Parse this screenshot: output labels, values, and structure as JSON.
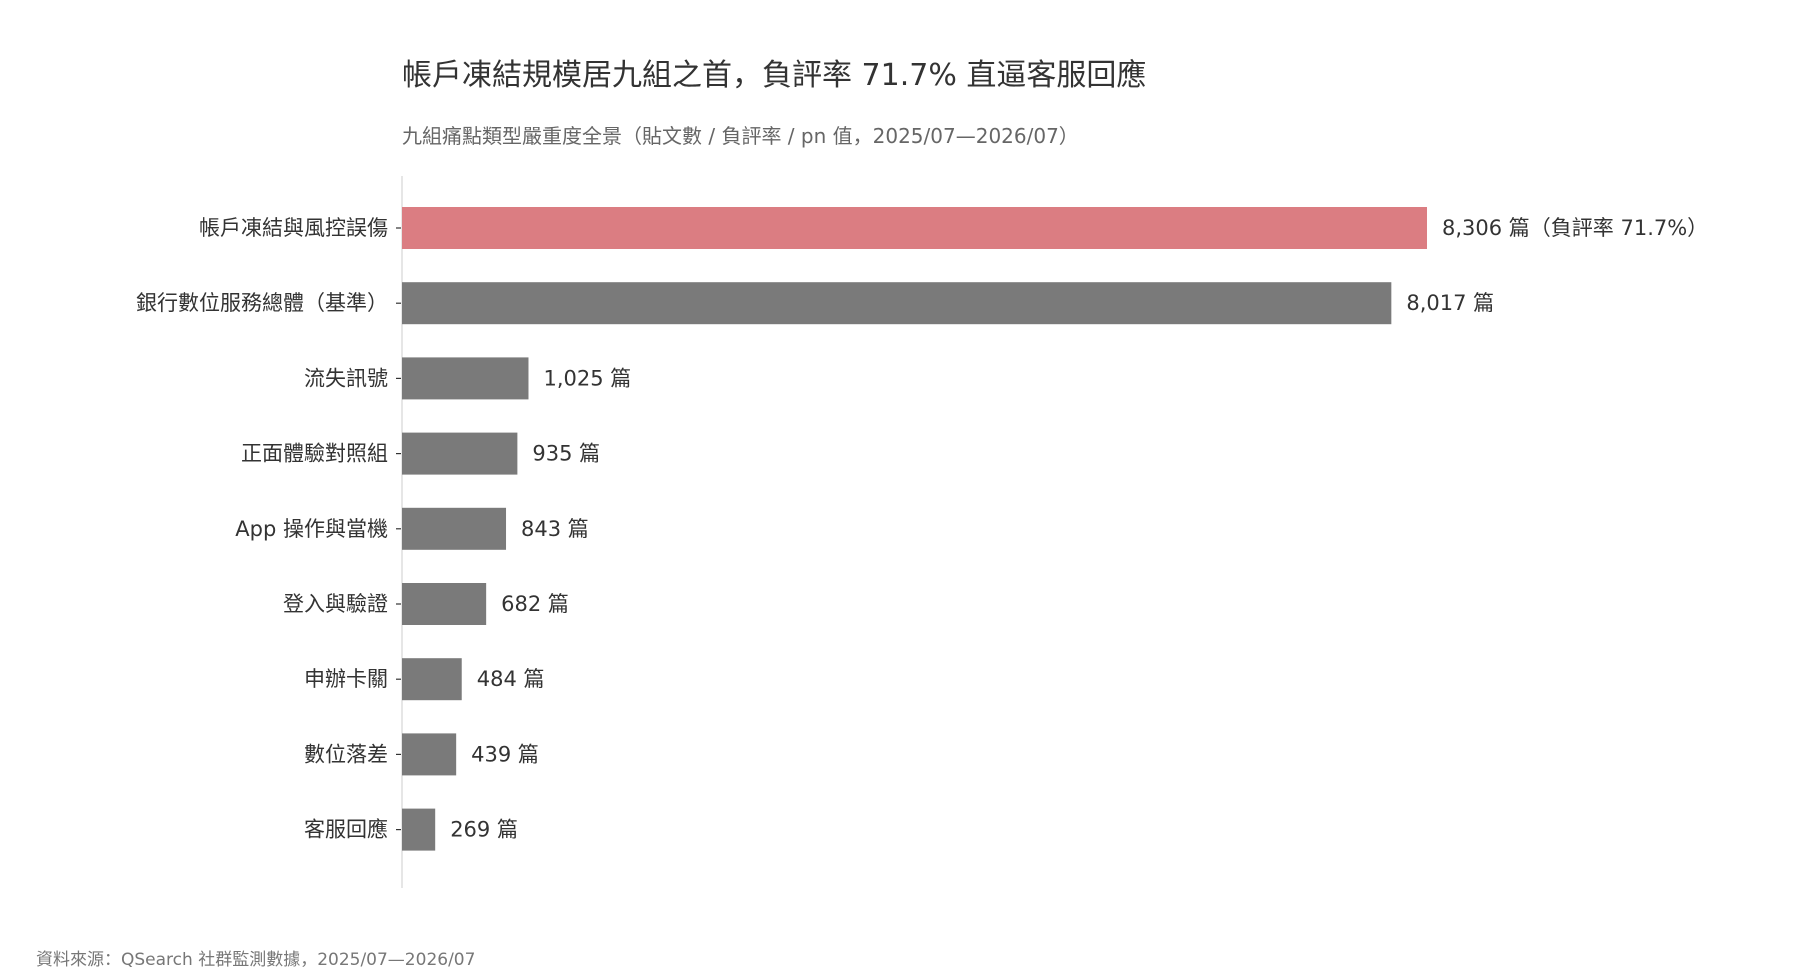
{
  "chart_data": {
    "type": "bar",
    "orientation": "horizontal",
    "title": "帳戶凍結規模居九組之首，負評率 71.7% 直逼客服回應",
    "subtitle": "九組痛點類型嚴重度全景（貼文數 / 負評率 / pn 值，2025/07—2026/07）",
    "source": "資料來源：QSearch 社群監測數據，2025/07—2026/07",
    "categories": [
      "帳戶凍結與風控誤傷",
      "銀行數位服務總體（基準）",
      "流失訊號",
      "正面體驗對照組",
      "App 操作與當機",
      "登入與驗證",
      "申辦卡關",
      "數位落差",
      "客服回應"
    ],
    "values": [
      8306,
      8017,
      1025,
      935,
      843,
      682,
      484,
      439,
      269
    ],
    "value_labels": [
      "8,306 篇（負評率 71.7%）",
      "8,017 篇",
      "1,025 篇",
      "935 篇",
      "843 篇",
      "682 篇",
      "484 篇",
      "439 篇",
      "269 篇"
    ],
    "highlight_index": 0,
    "colors": {
      "highlight": "#db7d82",
      "default": "#7a7a7a",
      "axis": "#dddddd",
      "text": "#333333"
    },
    "xlim": [
      0,
      8306
    ],
    "grid": false,
    "legend": "none"
  }
}
